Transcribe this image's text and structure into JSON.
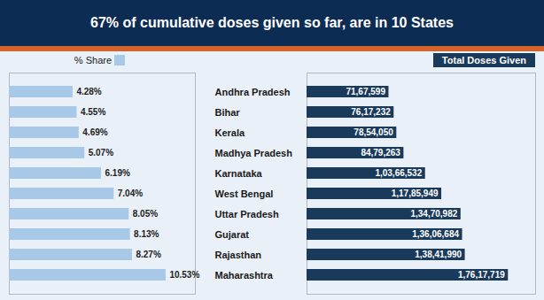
{
  "chart_data": [
    {
      "type": "bar",
      "orientation": "horizontal",
      "title": "67% of cumulative doses given so far, are in 10 States",
      "categories": [
        "Andhra Pradesh",
        "Bihar",
        "Kerala",
        "Madhya Pradesh",
        "Karnataka",
        "West Bengal",
        "Uttar Pradesh",
        "Gujarat",
        "Rajasthan",
        "Maharashtra"
      ],
      "series": [
        {
          "name": "% Share",
          "color": "#a8c8e8",
          "values": [
            4.28,
            4.55,
            4.69,
            5.07,
            6.19,
            7.04,
            8.05,
            8.13,
            8.27,
            10.53
          ],
          "value_labels": [
            "4.28%",
            "4.55%",
            "4.69%",
            "5.07%",
            "6.19%",
            "7.04%",
            "8.05%",
            "8.13%",
            "8.27%",
            "10.53%"
          ]
        }
      ],
      "xlim": [
        0,
        12.5
      ],
      "data_labels": true,
      "tick_labels": "y",
      "legend": "top",
      "grid": false
    },
    {
      "type": "bar",
      "orientation": "horizontal",
      "categories": [
        "Andhra Pradesh",
        "Bihar",
        "Kerala",
        "Madhya Pradesh",
        "Karnataka",
        "West Bengal",
        "Uttar Pradesh",
        "Gujarat",
        "Rajasthan",
        "Maharashtra"
      ],
      "series": [
        {
          "name": "Total Doses Given",
          "color": "#1a3a5c",
          "values": [
            7167599,
            7617232,
            7854050,
            8479263,
            10366532,
            11785949,
            13470982,
            13606684,
            13841990,
            17617719
          ],
          "value_labels": [
            "71,67,599",
            "76,17,232",
            "78,54,050",
            "84,79,263",
            "1,03,66,532",
            "1,17,85,949",
            "1,34,70,982",
            "1,36,06,684",
            "1,38,41,990",
            "1,76,17,719"
          ]
        }
      ],
      "xlim": [
        0,
        20000000
      ],
      "data_labels": true,
      "tick_labels": false,
      "legend": "top",
      "grid": false
    }
  ]
}
